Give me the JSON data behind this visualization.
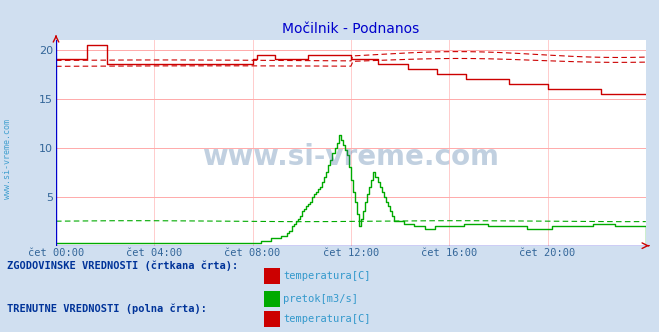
{
  "title": "Močilnik - Podnanos",
  "title_color": "#0000cc",
  "bg_color": "#d0dff0",
  "plot_bg_color": "#ffffff",
  "grid_color_v": "#ffcccc",
  "grid_color_h": "#ffaaaa",
  "x_ticks_labels": [
    "čet 00:00",
    "čet 04:00",
    "čet 08:00",
    "čet 12:00",
    "čet 16:00",
    "čet 20:00"
  ],
  "x_ticks_pos": [
    0,
    48,
    96,
    144,
    192,
    240
  ],
  "x_max": 288,
  "y_min": 0,
  "y_max": 21,
  "y_ticks": [
    5,
    10,
    15,
    20
  ],
  "temp_color": "#cc0000",
  "flow_color": "#00aa00",
  "tick_color": "#336699",
  "watermark": "www.si-vreme.com",
  "watermark_color": "#336699",
  "ylabel_text": "www.si-vreme.com",
  "ylabel_color": "#3399cc",
  "legend_hist_label": "ZGODOVINSKE VREDNOSTI (črtkana črta):",
  "legend_curr_label": "TRENUTNE VREDNOSTI (polna črta):",
  "legend_temp_label": "temperatura[C]",
  "legend_flow_label": "pretok[m3/s]",
  "legend_color": "#3399cc",
  "legend_title_color": "#003399"
}
